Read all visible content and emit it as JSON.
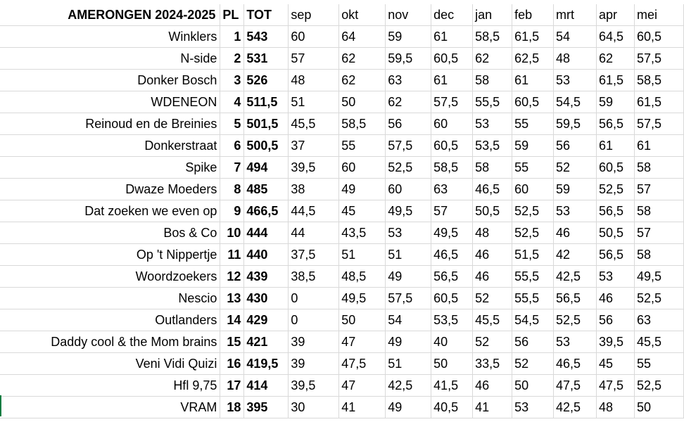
{
  "header": {
    "title": "AMERONGEN  2024-2025",
    "pl": "PL",
    "tot": "TOT",
    "months": [
      "sep",
      "okt",
      "nov",
      "dec",
      "jan",
      "feb",
      "mrt",
      "apr",
      "mei"
    ]
  },
  "rows": [
    {
      "name": "Winklers",
      "pl": "1",
      "tot": "543",
      "scores": [
        "60",
        "64",
        "59",
        "61",
        "58,5",
        "61,5",
        "54",
        "64,5",
        "60,5"
      ]
    },
    {
      "name": "N-side",
      "pl": "2",
      "tot": "531",
      "scores": [
        "57",
        "62",
        "59,5",
        "60,5",
        "62",
        "62,5",
        "48",
        "62",
        "57,5"
      ]
    },
    {
      "name": "Donker Bosch",
      "pl": "3",
      "tot": "526",
      "scores": [
        "48",
        "62",
        "63",
        "61",
        "58",
        "61",
        "53",
        "61,5",
        "58,5"
      ]
    },
    {
      "name": "WDENEON",
      "pl": "4",
      "tot": "511,5",
      "scores": [
        "51",
        "50",
        "62",
        "57,5",
        "55,5",
        "60,5",
        "54,5",
        "59",
        "61,5"
      ]
    },
    {
      "name": "Reinoud en de Breinies",
      "pl": "5",
      "tot": "501,5",
      "scores": [
        "45,5",
        "58,5",
        "56",
        "60",
        "53",
        "55",
        "59,5",
        "56,5",
        "57,5"
      ]
    },
    {
      "name": "Donkerstraat",
      "pl": "6",
      "tot": "500,5",
      "scores": [
        "37",
        "55",
        "57,5",
        "60,5",
        "53,5",
        "59",
        "56",
        "61",
        "61"
      ]
    },
    {
      "name": "Spike",
      "pl": "7",
      "tot": "494",
      "scores": [
        "39,5",
        "60",
        "52,5",
        "58,5",
        "58",
        "55",
        "52",
        "60,5",
        "58"
      ]
    },
    {
      "name": "Dwaze Moeders",
      "pl": "8",
      "tot": "485",
      "scores": [
        "38",
        "49",
        "60",
        "63",
        "46,5",
        "60",
        "59",
        "52,5",
        "57"
      ]
    },
    {
      "name": "Dat zoeken we even op",
      "pl": "9",
      "tot": "466,5",
      "scores": [
        "44,5",
        "45",
        "49,5",
        "57",
        "50,5",
        "52,5",
        "53",
        "56,5",
        "58"
      ]
    },
    {
      "name": "Bos & Co",
      "pl": "10",
      "tot": "444",
      "scores": [
        "44",
        "43,5",
        "53",
        "49,5",
        "48",
        "52,5",
        "46",
        "50,5",
        "57"
      ]
    },
    {
      "name": "Op 't Nippertje",
      "pl": "11",
      "tot": "440",
      "scores": [
        "37,5",
        "51",
        "51",
        "46,5",
        "46",
        "51,5",
        "42",
        "56,5",
        "58"
      ]
    },
    {
      "name": "Woordzoekers",
      "pl": "12",
      "tot": "439",
      "scores": [
        "38,5",
        "48,5",
        "49",
        "56,5",
        "46",
        "55,5",
        "42,5",
        "53",
        "49,5"
      ]
    },
    {
      "name": "Nescio",
      "pl": "13",
      "tot": "430",
      "scores": [
        "0",
        "49,5",
        "57,5",
        "60,5",
        "52",
        "55,5",
        "56,5",
        "46",
        "52,5"
      ]
    },
    {
      "name": "Outlanders",
      "pl": "14",
      "tot": "429",
      "scores": [
        "0",
        "50",
        "54",
        "53,5",
        "45,5",
        "54,5",
        "52,5",
        "56",
        "63"
      ]
    },
    {
      "name": "Daddy cool & the Mom brains",
      "pl": "15",
      "tot": "421",
      "scores": [
        "39",
        "47",
        "49",
        "40",
        "52",
        "56",
        "53",
        "39,5",
        "45,5"
      ]
    },
    {
      "name": "Veni Vidi Quizi",
      "pl": "16",
      "tot": "419,5",
      "scores": [
        "39",
        "47,5",
        "51",
        "50",
        "33,5",
        "52",
        "46,5",
        "45",
        "55"
      ]
    },
    {
      "name": "Hfl 9,75",
      "pl": "17",
      "tot": "414",
      "scores": [
        "39,5",
        "47",
        "42,5",
        "41,5",
        "46",
        "50",
        "47,5",
        "47,5",
        "52,5"
      ]
    },
    {
      "name": "VRAM",
      "pl": "18",
      "tot": "395",
      "scores": [
        "30",
        "41",
        "49",
        "40,5",
        "41",
        "53",
        "42,5",
        "48",
        "50"
      ]
    }
  ]
}
